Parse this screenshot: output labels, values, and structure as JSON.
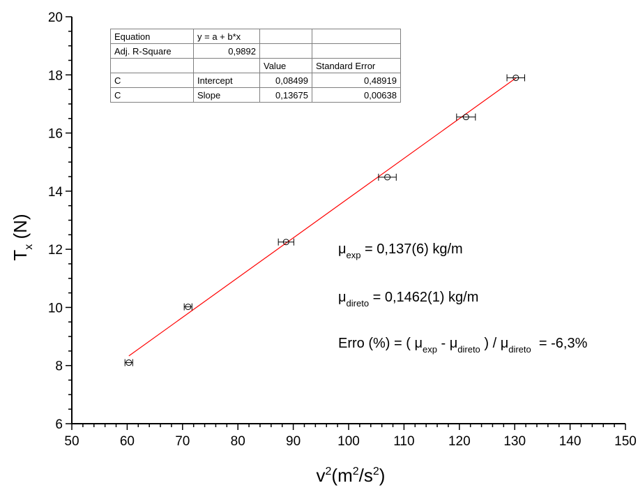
{
  "chart_data": {
    "type": "scatter",
    "xlabel": {
      "base": "v",
      "sup1": "2",
      "mid": "(m",
      "sup2": "2",
      "mid2": "/s",
      "sup3": "2",
      "end": ")"
    },
    "ylabel": {
      "base": "T",
      "sub": "x",
      "end": " (N)"
    },
    "xlim": [
      50,
      150
    ],
    "ylim": [
      6,
      20
    ],
    "xticks": [
      "50",
      "60",
      "70",
      "80",
      "90",
      "100",
      "110",
      "120",
      "130",
      "140",
      "150"
    ],
    "yticks": [
      "6",
      "8",
      "10",
      "12",
      "14",
      "16",
      "18",
      "20"
    ],
    "grid": false,
    "points": [
      {
        "x": 60.3,
        "y": 8.1,
        "xerr": 0.7
      },
      {
        "x": 71.0,
        "y": 10.02,
        "xerr": 0.7
      },
      {
        "x": 88.7,
        "y": 12.25,
        "xerr": 1.4
      },
      {
        "x": 107.0,
        "y": 14.48,
        "xerr": 1.6
      },
      {
        "x": 121.2,
        "y": 16.55,
        "xerr": 1.7
      },
      {
        "x": 130.2,
        "y": 17.9,
        "xerr": 1.6
      }
    ],
    "fit": {
      "intercept": 0.08499,
      "slope": 0.13675,
      "x_range": [
        60.3,
        130.2
      ],
      "color": "#ff0000"
    }
  },
  "fit_table": {
    "rows": [
      [
        "Equation",
        "y = a + b*x",
        "",
        ""
      ],
      [
        "Adj. R-Square",
        "0,9892",
        "",
        ""
      ],
      [
        "",
        "",
        "Value",
        "Standard Error"
      ],
      [
        "C",
        "Intercept",
        "0,08499",
        "0,48919"
      ],
      [
        "C",
        "Slope",
        "0,13675",
        "0,00638"
      ]
    ]
  },
  "annotations": {
    "mu_exp": {
      "mu": "μ",
      "sub": "exp",
      "rest": " = 0,137(6) kg/m"
    },
    "mu_direto": {
      "mu": "μ",
      "sub": "direto",
      "rest": " = 0,1462(1) kg/m"
    },
    "erro": {
      "prefix": "Erro (%) = ( ",
      "mu1": "μ",
      "sub1": "exp",
      "minus": " - ",
      "mu2": "μ",
      "sub2": "direto",
      "slash": " ) / ",
      "mu3": "μ",
      "sub3": "direto",
      "result": "  = -6,3%"
    }
  }
}
